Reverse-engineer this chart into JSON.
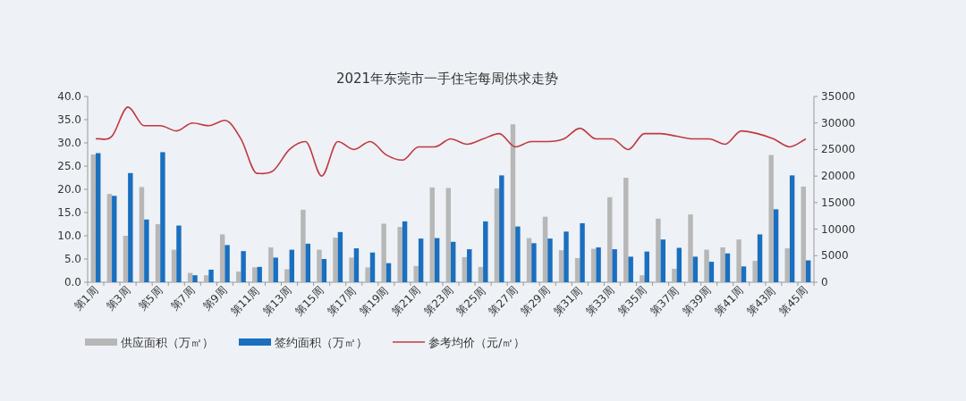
{
  "chart_data": {
    "type": "bar",
    "title": "2021年东莞市一手住宅每周供求走势",
    "categories": [
      "第1周",
      null,
      "第3周",
      null,
      "第5周",
      null,
      "第7周",
      null,
      "第9周",
      null,
      "第11周",
      null,
      "第13周",
      null,
      "第15周",
      null,
      "第17周",
      null,
      "第19周",
      null,
      "第21周",
      null,
      "第23周",
      null,
      "第25周",
      null,
      "第27周",
      null,
      "第29周",
      null,
      "第31周",
      null,
      "第33周",
      null,
      "第35周",
      null,
      "第37周",
      null,
      "第39周",
      null,
      "第41周",
      null,
      "第43周",
      null,
      "第45周"
    ],
    "series": [
      {
        "name": "供应面积（万㎡）",
        "color": "#b7b7b7",
        "values": [
          27.5,
          19.0,
          10.0,
          20.5,
          12.5,
          7.0,
          2.0,
          1.5,
          10.3,
          2.3,
          3.2,
          7.5,
          2.8,
          15.6,
          7.0,
          9.6,
          5.3,
          3.2,
          12.6,
          11.9,
          3.5,
          20.4,
          20.3,
          5.4,
          3.3,
          20.2,
          34.0,
          9.5,
          14.1,
          6.9,
          5.2,
          7.2,
          18.3,
          22.5,
          1.5,
          13.7,
          2.9,
          14.6,
          7.0,
          7.5,
          9.2,
          4.6,
          27.4,
          7.3,
          20.6
        ]
      },
      {
        "name": "签约面积（万㎡）",
        "color": "#1a6fbf",
        "values": [
          27.8,
          18.6,
          23.5,
          13.5,
          28.0,
          12.2,
          1.5,
          2.7,
          8.0,
          6.7,
          3.3,
          5.3,
          7.0,
          8.3,
          5.0,
          10.8,
          7.3,
          6.4,
          4.1,
          13.1,
          9.4,
          9.5,
          8.7,
          7.1,
          13.1,
          23.0,
          12.0,
          8.4,
          9.4,
          10.9,
          12.7,
          7.5,
          7.1,
          5.5,
          6.6,
          9.2,
          7.4,
          5.5,
          4.4,
          6.2,
          3.4,
          10.3,
          15.7,
          23.0,
          4.7
        ]
      },
      {
        "name": "参考均价（元/㎡）",
        "type": "line",
        "axis": "y2",
        "color": "#c0393f",
        "values": [
          27000,
          27500,
          33000,
          29500,
          29500,
          28500,
          30000,
          29500,
          30500,
          27000,
          20500,
          21000,
          25000,
          26500,
          20000,
          26500,
          25000,
          26500,
          24000,
          23000,
          25500,
          25500,
          27000,
          26000,
          27000,
          28000,
          25500,
          26500,
          26500,
          27000,
          29000,
          27000,
          27000,
          25000,
          28000,
          28000,
          27500,
          27000,
          27000,
          26000,
          28500,
          28000,
          27000,
          25500,
          27000
        ]
      }
    ],
    "ylim": [
      0,
      40
    ],
    "yticks": [
      {
        "value": 0,
        "label": "0.0"
      },
      {
        "value": 5,
        "label": "5.0"
      },
      {
        "value": 10,
        "label": "10.0"
      },
      {
        "value": 15,
        "label": "15.0"
      },
      {
        "value": 20,
        "label": "20.0"
      },
      {
        "value": 25,
        "label": "25.0"
      },
      {
        "value": 30,
        "label": "30.0"
      },
      {
        "value": 35,
        "label": "35.0"
      },
      {
        "value": 40,
        "label": "40.0"
      }
    ],
    "y2lim": [
      0,
      35000
    ],
    "y2ticks": [
      0,
      5000,
      10000,
      15000,
      20000,
      25000,
      30000,
      35000
    ],
    "legend": "bottom left",
    "grid": false
  }
}
